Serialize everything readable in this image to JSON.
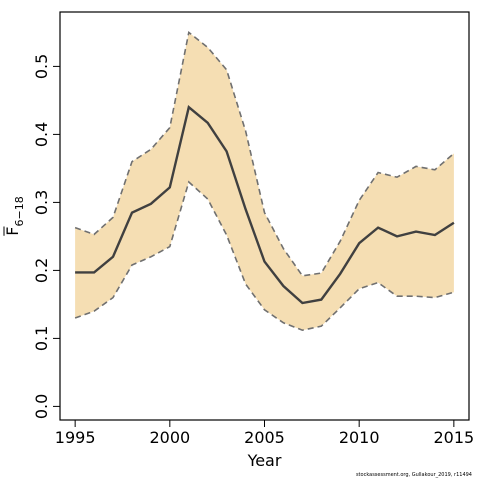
{
  "chart_data": {
    "type": "line",
    "xlabel": "Year",
    "ylabel_main": "F",
    "ylabel_sub": "6−18",
    "xlim": [
      1994.2,
      2015.8
    ],
    "ylim": [
      -0.02,
      0.58
    ],
    "x_ticks": [
      "1995",
      "2000",
      "2005",
      "2010",
      "2015"
    ],
    "y_ticks": [
      "0.0",
      "0.1",
      "0.2",
      "0.3",
      "0.4",
      "0.5"
    ],
    "colors": {
      "band": "#f5deb3",
      "line": "#404040",
      "bound": "#707070"
    },
    "series": [
      {
        "role": "estimate",
        "x": [
          1995,
          1996,
          1997,
          1998,
          1999,
          2000,
          2001,
          2002,
          2003,
          2004,
          2005,
          2006,
          2007,
          2008,
          2009,
          2010,
          2011,
          2012,
          2013,
          2014,
          2015
        ],
        "values": [
          0.197,
          0.197,
          0.22,
          0.285,
          0.298,
          0.322,
          0.44,
          0.417,
          0.375,
          0.29,
          0.213,
          0.177,
          0.152,
          0.157,
          0.195,
          0.24,
          0.263,
          0.25,
          0.257,
          0.252,
          0.27
        ]
      },
      {
        "role": "upper",
        "x": [
          1995,
          1996,
          1997,
          1998,
          1999,
          2000,
          2001,
          2002,
          2003,
          2004,
          2005,
          2006,
          2007,
          2008,
          2009,
          2010,
          2011,
          2012,
          2013,
          2014,
          2015
        ],
        "values": [
          0.263,
          0.253,
          0.278,
          0.36,
          0.378,
          0.41,
          0.55,
          0.528,
          0.495,
          0.405,
          0.285,
          0.232,
          0.192,
          0.196,
          0.243,
          0.303,
          0.344,
          0.337,
          0.353,
          0.348,
          0.372
        ]
      },
      {
        "role": "lower",
        "x": [
          1995,
          1996,
          1997,
          1998,
          1999,
          2000,
          2001,
          2002,
          2003,
          2004,
          2005,
          2006,
          2007,
          2008,
          2009,
          2010,
          2011,
          2012,
          2013,
          2014,
          2015
        ],
        "values": [
          0.13,
          0.14,
          0.16,
          0.208,
          0.22,
          0.235,
          0.33,
          0.305,
          0.252,
          0.18,
          0.142,
          0.123,
          0.112,
          0.118,
          0.145,
          0.173,
          0.182,
          0.162,
          0.162,
          0.16,
          0.168
        ]
      }
    ]
  },
  "footer": "stockassessment.org, Gullakour_2019, r11494"
}
